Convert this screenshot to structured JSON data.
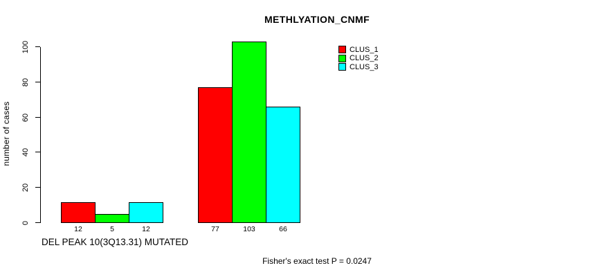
{
  "chart_data": {
    "type": "bar",
    "title": "METHLYATION_CNMF",
    "ylabel": "number of cases",
    "footnote": "Fisher's exact test P = 0.0247",
    "series": [
      {
        "name": "CLUS_1",
        "color": "#FF0000"
      },
      {
        "name": "CLUS_2",
        "color": "#00FF00"
      },
      {
        "name": "CLUS_3",
        "color": "#00FFFF"
      }
    ],
    "groups": [
      {
        "label": "DEL PEAK 10(3Q13.31) MUTATED",
        "values": [
          12,
          5,
          12
        ]
      },
      {
        "label": "",
        "values": [
          77,
          103,
          66
        ]
      }
    ],
    "yticks": [
      0,
      20,
      40,
      60,
      80,
      100
    ],
    "ylim": [
      0,
      100
    ],
    "grid": "off",
    "legend_position": "top-right",
    "bar_border_color": "#000000",
    "background": "#FFFFFF"
  }
}
